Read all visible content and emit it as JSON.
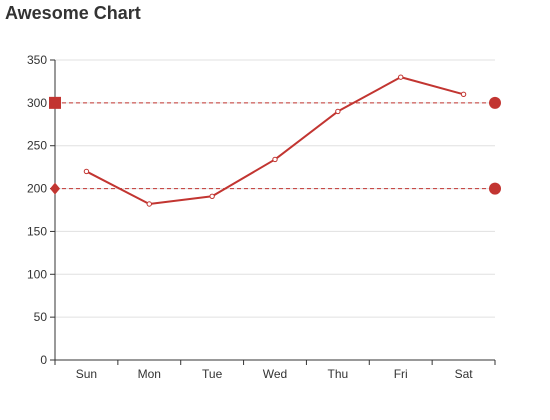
{
  "chart_data": {
    "type": "line",
    "title": "Awesome Chart",
    "categories": [
      "Sun",
      "Mon",
      "Tue",
      "Wed",
      "Thu",
      "Fri",
      "Sat"
    ],
    "series": [
      {
        "values": [
          220,
          182,
          191,
          234,
          290,
          330,
          310
        ],
        "color": "#c23531"
      }
    ],
    "mark_lines": [
      {
        "value": 300,
        "start_symbol": "square",
        "end_symbol": "circle"
      },
      {
        "value": 200,
        "start_symbol": "diamond",
        "end_symbol": "circle"
      }
    ],
    "ylim": [
      0,
      350
    ],
    "y_ticks": [
      0,
      50,
      100,
      150,
      200,
      250,
      300,
      350
    ],
    "grid": true,
    "xlabel": "",
    "ylabel": ""
  }
}
